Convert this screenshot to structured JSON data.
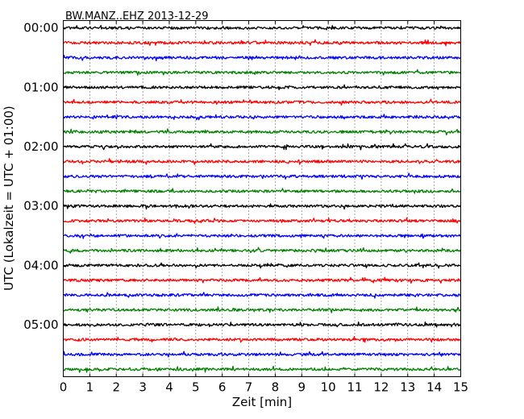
{
  "chart_data": {
    "type": "line",
    "title": "BW.MANZ..EHZ 2013-12-29",
    "xlabel": "Zeit  [min]",
    "ylabel": "UTC (Lokalzeit = UTC + 01:00)",
    "xlim": [
      0,
      15
    ],
    "x_ticks": [
      "0",
      "1",
      "2",
      "3",
      "4",
      "5",
      "6",
      "7",
      "8",
      "9",
      "10",
      "11",
      "12",
      "13",
      "14",
      "15"
    ],
    "y_tick_labels": [
      "00:00",
      "01:00",
      "02:00",
      "03:00",
      "04:00",
      "05:00"
    ],
    "trace_interval_min": 15,
    "trace_count": 24,
    "trace_colors": [
      "#000000",
      "#ff0000",
      "#0000ff",
      "#008000"
    ],
    "grid": "vertical dotted",
    "traces": [
      {
        "start": "00:00",
        "color": "#000000"
      },
      {
        "start": "00:15",
        "color": "#ff0000"
      },
      {
        "start": "00:30",
        "color": "#0000ff"
      },
      {
        "start": "00:45",
        "color": "#008000"
      },
      {
        "start": "01:00",
        "color": "#000000"
      },
      {
        "start": "01:15",
        "color": "#ff0000"
      },
      {
        "start": "01:30",
        "color": "#0000ff"
      },
      {
        "start": "01:45",
        "color": "#008000"
      },
      {
        "start": "02:00",
        "color": "#000000"
      },
      {
        "start": "02:15",
        "color": "#ff0000"
      },
      {
        "start": "02:30",
        "color": "#0000ff"
      },
      {
        "start": "02:45",
        "color": "#008000"
      },
      {
        "start": "03:00",
        "color": "#000000"
      },
      {
        "start": "03:15",
        "color": "#ff0000"
      },
      {
        "start": "03:30",
        "color": "#0000ff"
      },
      {
        "start": "03:45",
        "color": "#008000"
      },
      {
        "start": "04:00",
        "color": "#000000"
      },
      {
        "start": "04:15",
        "color": "#ff0000"
      },
      {
        "start": "04:30",
        "color": "#0000ff"
      },
      {
        "start": "04:45",
        "color": "#008000"
      },
      {
        "start": "05:00",
        "color": "#000000"
      },
      {
        "start": "05:15",
        "color": "#ff0000"
      },
      {
        "start": "05:30",
        "color": "#0000ff"
      },
      {
        "start": "05:45",
        "color": "#008000"
      }
    ]
  }
}
